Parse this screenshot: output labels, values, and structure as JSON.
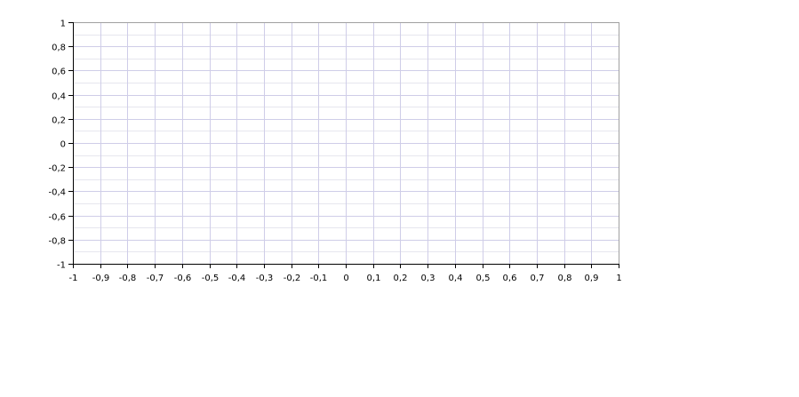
{
  "chart_data": {
    "type": "line",
    "title": "",
    "xlabel": "",
    "ylabel": "",
    "xlim": [
      -1,
      1
    ],
    "ylim": [
      -1,
      1
    ],
    "grid": true,
    "series": [],
    "x_tick_labels": [
      "-1",
      "-0,9",
      "-0,8",
      "-0,7",
      "-0,6",
      "-0,5",
      "-0,4",
      "-0,3",
      "-0,2",
      "-0,1",
      "0",
      "0,1",
      "0,2",
      "0,3",
      "0,4",
      "0,5",
      "0,6",
      "0,7",
      "0,8",
      "0,9",
      "1"
    ],
    "y_tick_labels": [
      "1",
      "0,8",
      "0,6",
      "0,4",
      "0,2",
      "0",
      "-0,2",
      "-0,4",
      "-0,6",
      "-0,8",
      "-1"
    ]
  },
  "colors": {
    "background": "#ffffff",
    "grid_major": "#cfcde8",
    "grid_minor": "#e6e6ee",
    "frame": "#a0a0a0",
    "axis": "#000000"
  }
}
